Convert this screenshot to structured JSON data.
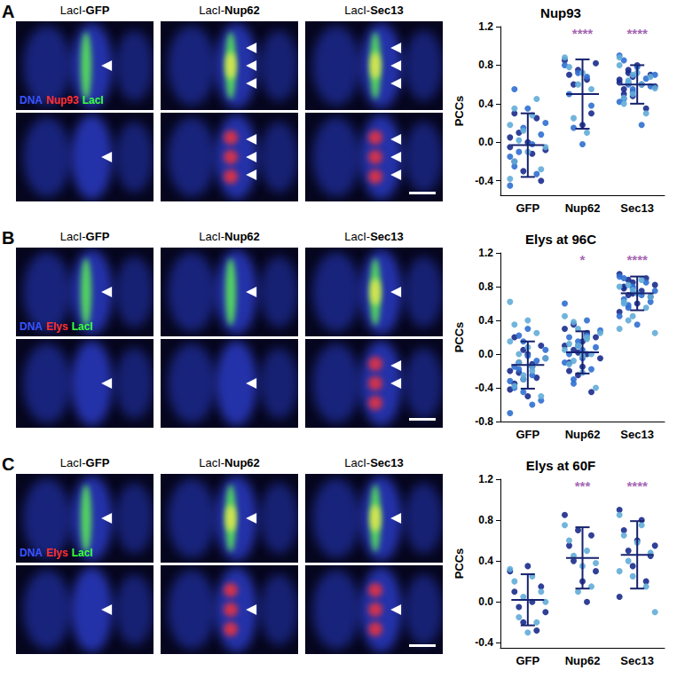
{
  "figure_panels": [
    {
      "label": "A",
      "columns": [
        "LacI-GFP",
        "LacI-Nup62",
        "LacI-Sec13"
      ],
      "channels": [
        {
          "name": "DNA",
          "color": "#3b55ff"
        },
        {
          "name": "Nup93",
          "color": "#ff3030"
        },
        {
          "name": "LacI",
          "color": "#3cff3c"
        }
      ]
    },
    {
      "label": "B",
      "columns": [
        "LacI-GFP",
        "LacI-Nup62",
        "LacI-Sec13"
      ],
      "channels": [
        {
          "name": "DNA",
          "color": "#3b55ff"
        },
        {
          "name": "Elys",
          "color": "#ff3030"
        },
        {
          "name": "LacI",
          "color": "#3cff3c"
        }
      ]
    },
    {
      "label": "C",
      "columns": [
        "LacI-GFP",
        "LacI-Nup62",
        "LacI-Sec13"
      ],
      "channels": [
        {
          "name": "DNA",
          "color": "#3b55ff"
        },
        {
          "name": "Elys",
          "color": "#ff3030"
        },
        {
          "name": "LacI",
          "color": "#3cff3c"
        }
      ]
    }
  ],
  "chart_data": [
    {
      "type": "scatter",
      "title": "Nup93",
      "y_label": "PCCs",
      "categories": [
        "GFP",
        "Nup62",
        "Sec13"
      ],
      "ylim": [
        -0.55,
        1.2
      ],
      "yticks": [
        -0.4,
        {
          "value": 0,
          "label": "0.0"
        },
        0.4,
        0.8,
        1.2
      ],
      "series": [
        {
          "color": "#1a2b8c",
          "values": [
            [
              -0.05,
              -0.2,
              0.1,
              -0.3,
              0.0,
              -0.12,
              0.25,
              -0.4,
              -0.08,
              0.05,
              0.3
            ],
            [
              0.85,
              0.7,
              0.6,
              0.75,
              0.18,
              0.65,
              0.3,
              0.82
            ],
            [
              0.65,
              0.55,
              0.72,
              0.48,
              0.8,
              0.6,
              0.35,
              0.7,
              0.58,
              0.62,
              0.5,
              0.75,
              0.68
            ]
          ]
        },
        {
          "color": "#2f6fd0",
          "values": [
            [
              -0.45,
              -0.25,
              -0.1,
              0.15,
              0.35,
              -0.02,
              -0.33,
              0.08,
              0.2,
              -0.15,
              0.55
            ],
            [
              0.8,
              0.5,
              0.15,
              0.72,
              -0.02,
              0.68,
              0.38
            ],
            [
              0.9,
              0.45,
              0.62,
              0.52,
              0.78,
              0.18,
              0.66,
              0.58,
              0.7,
              0.42,
              0.85,
              0.6,
              0.55
            ]
          ]
        },
        {
          "color": "#62acd8",
          "values": [
            [
              -0.38,
              -0.2,
              0.02,
              0.12,
              -0.1,
              0.28,
              0.45,
              -0.28,
              -0.05,
              0.18,
              0.35
            ],
            [
              0.88,
              0.78,
              0.25,
              0.6,
              0.72,
              0.1,
              0.55
            ],
            [
              0.88,
              0.4,
              0.64,
              0.5,
              0.72,
              0.6,
              0.3,
              0.68,
              0.56,
              0.8,
              0.46,
              0.62,
              0.7
            ]
          ]
        }
      ],
      "mean": [
        -0.03,
        0.5,
        0.6
      ],
      "sd": [
        0.33,
        0.36,
        0.2
      ],
      "annotations": {
        "labels": [
          null,
          "****",
          "****"
        ],
        "color": "#8e3b9e"
      }
    },
    {
      "type": "scatter",
      "title": "Elys at 96C",
      "y_label": "PCCs",
      "categories": [
        "GFP",
        "Nup62",
        "Sec13"
      ],
      "ylim": [
        -0.8,
        1.2
      ],
      "yticks": [
        -0.8,
        -0.4,
        {
          "value": 0,
          "label": "0.0"
        },
        0.4,
        0.8,
        1.2
      ],
      "series": [
        {
          "color": "#1a2b8c",
          "values": [
            [
              -0.2,
              -0.35,
              -0.1,
              0.05,
              -0.5,
              -0.15,
              -0.28,
              0.1,
              -0.05,
              -0.42,
              0.2,
              -0.22,
              -0.3,
              0.0,
              -0.12
            ],
            [
              0.3,
              -0.1,
              0.05,
              -0.25,
              0.15,
              0.0,
              -0.45,
              0.2,
              -0.05,
              0.1,
              -0.2,
              0.35,
              0.02,
              -0.15,
              0.25
            ],
            [
              0.95,
              0.8,
              0.7,
              0.85,
              0.6,
              0.75,
              0.9,
              0.68,
              0.82,
              0.5,
              0.78,
              0.88,
              0.72
            ]
          ]
        },
        {
          "color": "#2f6fd0",
          "values": [
            [
              -0.7,
              -0.4,
              -0.18,
              0.15,
              0.3,
              -0.25,
              -0.08,
              -0.55,
              0.05,
              -0.32,
              -0.15,
              0.22,
              -0.45,
              -0.02,
              -0.6
            ],
            [
              0.6,
              0.2,
              -0.3,
              0.1,
              -0.05,
              0.4,
              -0.18,
              0.08,
              0.28,
              -0.1,
              0.0,
              -0.35,
              0.15,
              0.05,
              0.22
            ],
            [
              0.92,
              0.65,
              0.55,
              0.8,
              0.35,
              0.7,
              0.85,
              0.62,
              0.75,
              0.45,
              0.9,
              0.58,
              0.78
            ]
          ]
        },
        {
          "color": "#62acd8",
          "values": [
            [
              0.62,
              0.35,
              -0.1,
              -0.3,
              0.08,
              -0.2,
              0.25,
              -0.5,
              -0.05,
              0.15,
              -0.38,
              0.0,
              -0.25,
              0.4,
              -0.15
            ],
            [
              0.45,
              0.12,
              -0.08,
              0.3,
              -0.22,
              0.18,
              0.0,
              -0.4,
              0.25,
              0.05,
              -0.12,
              0.38,
              0.1,
              -0.02,
              0.2
            ],
            [
              0.3,
              0.6,
              0.82,
              0.45,
              0.72,
              0.88,
              0.55,
              0.68,
              0.25,
              0.8,
              0.62,
              0.4,
              0.76
            ]
          ]
        }
      ],
      "mean": [
        -0.13,
        0.02,
        0.72
      ],
      "sd": [
        0.28,
        0.25,
        0.2
      ],
      "annotations": {
        "labels": [
          null,
          "*",
          "****"
        ],
        "color": "#8e3b9e"
      }
    },
    {
      "type": "scatter",
      "title": "Elys at 60F",
      "y_label": "PCCs",
      "categories": [
        "GFP",
        "Nup62",
        "Sec13"
      ],
      "ylim": [
        -0.45,
        1.2
      ],
      "yticks": [
        -0.4,
        {
          "value": 0,
          "label": "0.0"
        },
        0.4,
        0.8,
        1.2
      ],
      "series": [
        {
          "color": "#1a2b8c",
          "values": [
            [
              0.3,
              0.1,
              -0.05,
              -0.2,
              0.35,
              0.0,
              -0.28,
              0.15,
              -0.1
            ],
            [
              0.85,
              0.55,
              0.4,
              0.7,
              0.2,
              0.0,
              0.65,
              0.3
            ],
            [
              0.9,
              0.7,
              0.5,
              0.35,
              0.6,
              0.8,
              0.2,
              0.45,
              0.55,
              0.05
            ]
          ]
        },
        {
          "color": "#62acd8",
          "values": [
            [
              0.32,
              0.2,
              -0.15,
              0.05,
              -0.3,
              0.25,
              -0.2,
              0.1,
              0.0
            ],
            [
              0.75,
              0.6,
              0.45,
              0.1,
              0.35,
              0.5,
              0.15,
              0.38
            ],
            [
              0.85,
              0.65,
              0.4,
              0.25,
              0.58,
              0.75,
              0.15,
              0.48,
              -0.1,
              0.3
            ]
          ]
        }
      ],
      "mean": [
        0.02,
        0.43,
        0.46
      ],
      "sd": [
        0.25,
        0.3,
        0.33
      ],
      "annotations": {
        "labels": [
          null,
          "***",
          "****"
        ],
        "color": "#8e3b9e"
      }
    }
  ]
}
